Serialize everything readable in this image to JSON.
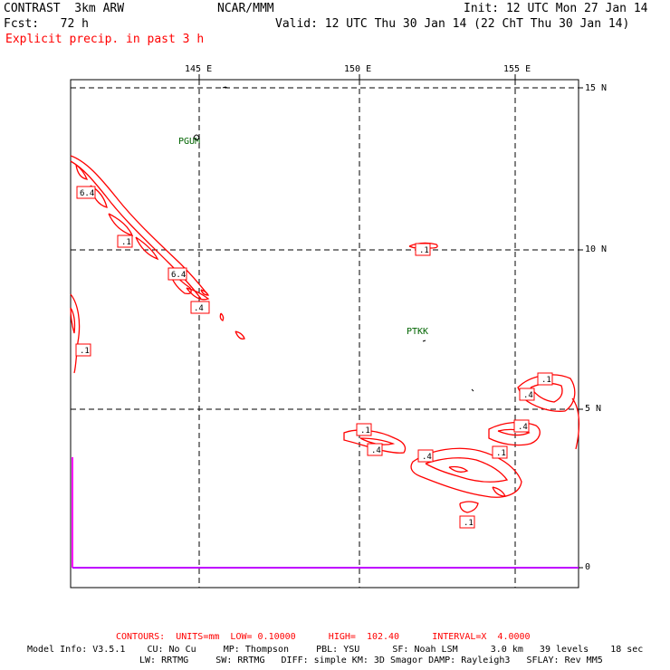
{
  "header": {
    "title": "CONTRAST  3km ARW",
    "org": "NCAR/MMM",
    "init": "Init: 12 UTC Mon 27 Jan 14",
    "fcst": "Fcst:   72 h",
    "valid": "Valid: 12 UTC Thu 30 Jan 14 (22 ChT Thu 30 Jan 14)",
    "field": "Explicit precip. in past 3 h"
  },
  "axes": {
    "lon_labels": [
      "145 E",
      "150 E",
      "155 E"
    ],
    "lat_labels": [
      "15 N",
      "10 N",
      "5 N",
      "0"
    ]
  },
  "stations": [
    "PGUM",
    "PTKK"
  ],
  "contour_labels": [
    ".4",
    ".1",
    "6.4",
    "6.4",
    ".1",
    ".4",
    ".1",
    ".1",
    ".4",
    ".1",
    ".4",
    ".4",
    ".1",
    ".1"
  ],
  "footer": {
    "contours": "CONTOURS:  UNITS=mm  LOW= 0.10000      HIGH=  102.40      INTERVAL=X  4.0000",
    "model_line1": "Model Info: V3.5.1    CU: No Cu     MP: Thompson     PBL: YSU      SF: Noah LSM      3.0 km   39 levels    18 sec",
    "model_line2": "LW: RRTMG     SW: RRTMG   DIFF: simple KM: 3D Smagor DAMP: Rayleigh3   SFLAY: Rev MM5"
  },
  "colors": {
    "precip": "#ff0000",
    "station": "#006400",
    "boundary": "#ff00ff",
    "text_red": "#ff0000"
  }
}
